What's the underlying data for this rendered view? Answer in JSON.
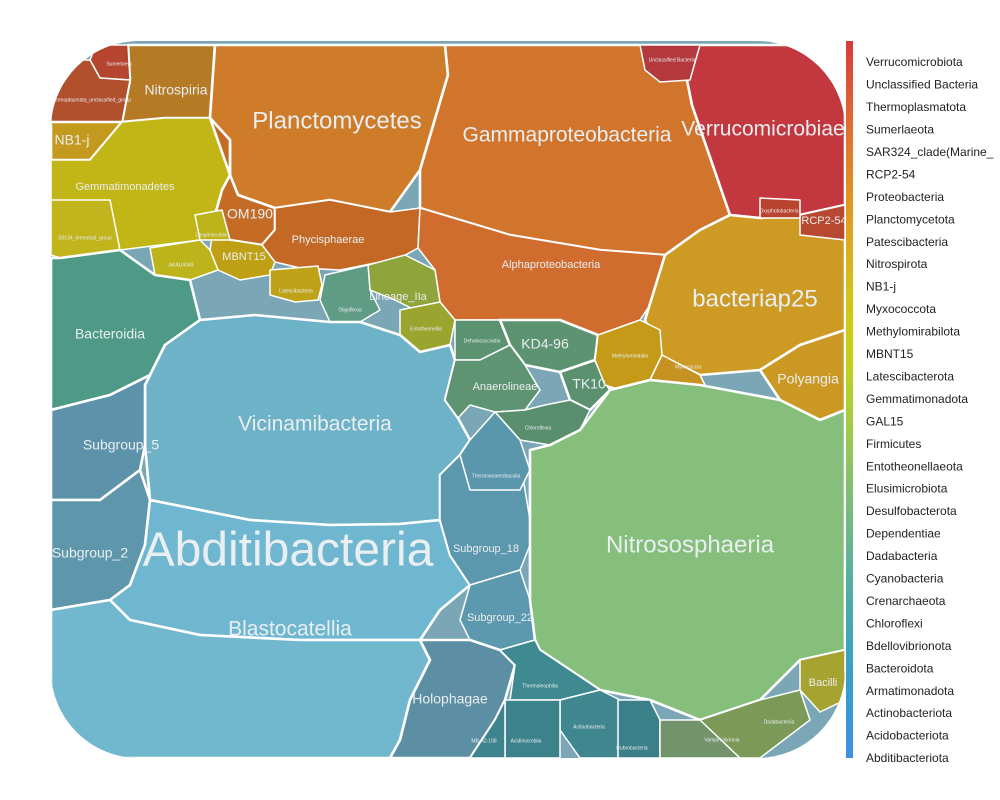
{
  "chart_data": {
    "type": "voronoi-treemap",
    "title": "",
    "legend": {
      "position": "right",
      "orientation": "vertical-gradient",
      "entries": [
        {
          "label": "Verrucomicrobiota",
          "color": "#d53a3d"
        },
        {
          "label": "Unclassified Bacteria",
          "color": "#d9483a"
        },
        {
          "label": "Thermoplasmatota",
          "color": "#dc5636"
        },
        {
          "label": "Sumerlaeota",
          "color": "#de6433"
        },
        {
          "label": "SAR324_clade(Marine_",
          "color": "#df712f"
        },
        {
          "label": "RCP2-54",
          "color": "#e07e2b"
        },
        {
          "label": "Proteobacteria",
          "color": "#e08a27"
        },
        {
          "label": "Planctomycetota",
          "color": "#e09624"
        },
        {
          "label": "Patescibacteria",
          "color": "#dfa222"
        },
        {
          "label": "Nitrospirota",
          "color": "#dcad1e"
        },
        {
          "label": "NB1-j",
          "color": "#d9b81b"
        },
        {
          "label": "Myxococcota",
          "color": "#d5c218"
        },
        {
          "label": "Methylomirabilota",
          "color": "#d0c916"
        },
        {
          "label": "MBNT15",
          "color": "#cacd15"
        },
        {
          "label": "Latescibacterota",
          "color": "#c3cf1c"
        },
        {
          "label": "Gemmatimonadota",
          "color": "#b8cf2c"
        },
        {
          "label": "GAL15",
          "color": "#abcd3d"
        },
        {
          "label": "Firmicutes",
          "color": "#9ec94e"
        },
        {
          "label": "Entotheonellaeota",
          "color": "#91c55e"
        },
        {
          "label": "Elusimicrobiota",
          "color": "#85c16c"
        },
        {
          "label": "Desulfobacterota",
          "color": "#7abd79"
        },
        {
          "label": "Dependentiae",
          "color": "#6fb985"
        },
        {
          "label": "Dadabacteria",
          "color": "#64b591"
        },
        {
          "label": "Cyanobacteria",
          "color": "#5ab19c"
        },
        {
          "label": "Crenarchaeota",
          "color": "#50aca7"
        },
        {
          "label": "Chloroflexi",
          "color": "#48a8b1"
        },
        {
          "label": "Bdellovibrionota",
          "color": "#41a4bb"
        },
        {
          "label": "Bacteroidota",
          "color": "#3ca0c4"
        },
        {
          "label": "Armatimonadota",
          "color": "#3a9ccd"
        },
        {
          "label": "Actinobacteriota",
          "color": "#3a98d5"
        },
        {
          "label": "Acidobacteriota",
          "color": "#3b94dc"
        },
        {
          "label": "Abditibacteriota",
          "color": "#3d91e0"
        }
      ]
    },
    "cells": [
      {
        "label": "Nitrospiria",
        "phylum": "Nitrospirota",
        "color": "#b47a24",
        "size": "md"
      },
      {
        "label": "Sumerlaeia",
        "phylum": "Sumerlaeota",
        "color": "#b5452f",
        "size": "xs"
      },
      {
        "label": "Thermoplasmata_unclassified_group",
        "phylum": "Thermoplasmatota",
        "color": "#b0502d",
        "size": "xs"
      },
      {
        "label": "NB1-j",
        "phylum": "NB1-j",
        "color": "#c39a1e",
        "size": "md"
      },
      {
        "label": "Planctomycetes",
        "phylum": "Planctomycetota",
        "color": "#cf7c2a",
        "size": "lg"
      },
      {
        "label": "Gammaproteobacteria",
        "phylum": "Proteobacteria",
        "color": "#d1742c",
        "size": "md2"
      },
      {
        "label": "Verrucomicrobiae",
        "phylum": "Verrucomicrobiota",
        "color": "#c3383f",
        "size": "md2"
      },
      {
        "label": "Unclassified Bacteria",
        "phylum": "Unclassified Bacteria",
        "color": "#b3393d",
        "size": "xs"
      },
      {
        "label": "Gemmatimonadetes",
        "phylum": "Gemmatimonadota",
        "color": "#c2b616",
        "size": "sm"
      },
      {
        "label": "OM190",
        "phylum": "Planctomycetota",
        "color": "#c46c26",
        "size": "md"
      },
      {
        "label": "Phycisphaerae",
        "phylum": "Planctomycetota",
        "color": "#c36925",
        "size": "sm"
      },
      {
        "label": "Alphaproteobacteria",
        "phylum": "Proteobacteria",
        "color": "#d06d2e",
        "size": "sm"
      },
      {
        "label": "bacteriap25",
        "phylum": "Myxococcota",
        "color": "#cd9a24",
        "size": "lg"
      },
      {
        "label": "RCP2-54",
        "phylum": "RCP2-54",
        "color": "#b84930",
        "size": "sm"
      },
      {
        "label": "Oxyphotobacteria",
        "phylum": "Myxococcota",
        "color": "#b8432f",
        "size": "xs"
      },
      {
        "label": "MBNT15",
        "phylum": "MBNT15",
        "color": "#bfa014",
        "size": "sm"
      },
      {
        "label": "AKAU4049",
        "phylum": "Gemmatimonadota",
        "color": "#bdb31b",
        "size": "xs"
      },
      {
        "label": "Longimicrobia",
        "phylum": "Gemmatimonadota",
        "color": "#bcb21a",
        "size": "xs"
      },
      {
        "label": "S0134_terrestrial_group",
        "phylum": "Gemmatimonadota",
        "color": "#c1b41d",
        "size": "xs"
      },
      {
        "label": "Bacteroidia",
        "phylum": "Bacteroidota",
        "color": "#4e9a86",
        "size": "md"
      },
      {
        "label": "Latescibacteria",
        "phylum": "Latescibacterota",
        "color": "#c0a219",
        "size": "xs"
      },
      {
        "label": "Lineage_IIa",
        "phylum": "Elusimicrobiota",
        "color": "#8fa43b",
        "size": "sm"
      },
      {
        "label": "Entotheonellia",
        "phylum": "Entotheonellaeota",
        "color": "#9aa52f",
        "size": "xs"
      },
      {
        "label": "Oligoflexia",
        "phylum": "Bdellovibrionota",
        "color": "#5e9c86",
        "size": "xs"
      },
      {
        "label": "Vicinamibacteria",
        "phylum": "Acidobacteriota",
        "color": "#6eb2c8",
        "size": "md2"
      },
      {
        "label": "Dehalococcoidia",
        "phylum": "Chloroflexi",
        "color": "#5b9270",
        "size": "xs"
      },
      {
        "label": "KD4-96",
        "phylum": "Chloroflexi",
        "color": "#5e9371",
        "size": "md"
      },
      {
        "label": "Anaerolineae",
        "phylum": "Chloroflexi",
        "color": "#5f9472",
        "size": "sm"
      },
      {
        "label": "TK10",
        "phylum": "Chloroflexi",
        "color": "#5c9170",
        "size": "md"
      },
      {
        "label": "Chloroflexia",
        "phylum": "Chloroflexi",
        "color": "#5a8f6e",
        "size": "xs"
      },
      {
        "label": "Methylomirabilia",
        "phylum": "Methylomirabilota",
        "color": "#c49a18",
        "size": "xs"
      },
      {
        "label": "Polyangia",
        "phylum": "Myxococcota",
        "color": "#cc9824",
        "size": "md"
      },
      {
        "label": "Myxococcia",
        "phylum": "Myxococcota",
        "color": "#c69222",
        "size": "xs"
      },
      {
        "label": "Subgroup_5",
        "phylum": "Acidobacteriota",
        "color": "#5d93aa",
        "size": "md"
      },
      {
        "label": "Subgroup_2",
        "phylum": "Acidobacteriota",
        "color": "#5e96ac",
        "size": "md"
      },
      {
        "label": "Abditibacteria",
        "phylum": "Abditibacteriota",
        "color": "#6fb7d0",
        "size": "xl"
      },
      {
        "label": "Blastocatellia",
        "phylum": "Acidobacteriota",
        "color": "#71b7ce",
        "size": "md2"
      },
      {
        "label": "Subgroup_18",
        "phylum": "Acidobacteriota",
        "color": "#5c98ad",
        "size": "sm"
      },
      {
        "label": "Subgroup_22",
        "phylum": "Acidobacteriota",
        "color": "#5d99ae",
        "size": "sm"
      },
      {
        "label": "Thermoanaerobaculia",
        "phylum": "Acidobacteriota",
        "color": "#5a97ad",
        "size": "xs"
      },
      {
        "label": "Holophagae",
        "phylum": "Acidobacteriota",
        "color": "#5c8fa4",
        "size": "md"
      },
      {
        "label": "Nitrososphaeria",
        "phylum": "Crenarchaeota",
        "color": "#86bf7c",
        "size": "lg"
      },
      {
        "label": "Thermoleophilia",
        "phylum": "Actinobacteriota",
        "color": "#3f8a91",
        "size": "xs"
      },
      {
        "label": "Actinobacteria",
        "phylum": "Actinobacteriota",
        "color": "#3f868e",
        "size": "xs"
      },
      {
        "label": "Acidimicrobiia",
        "phylum": "Actinobacteriota",
        "color": "#3b828b",
        "size": "xs"
      },
      {
        "label": "MB-A2-108",
        "phylum": "Actinobacteriota",
        "color": "#3d848c",
        "size": "xs"
      },
      {
        "label": "Rubrobacteria",
        "phylum": "Actinobacteriota",
        "color": "#3b7f88",
        "size": "xs"
      },
      {
        "label": "Vampirivibrionia",
        "phylum": "Cyanobacteria",
        "color": "#73936a",
        "size": "xs"
      },
      {
        "label": "Dadabacteriia",
        "phylum": "Dadabacteria",
        "color": "#7b9a58",
        "size": "xs"
      },
      {
        "label": "Bacilli",
        "phylum": "Firmicutes",
        "color": "#a7a330",
        "size": "sm"
      }
    ]
  }
}
